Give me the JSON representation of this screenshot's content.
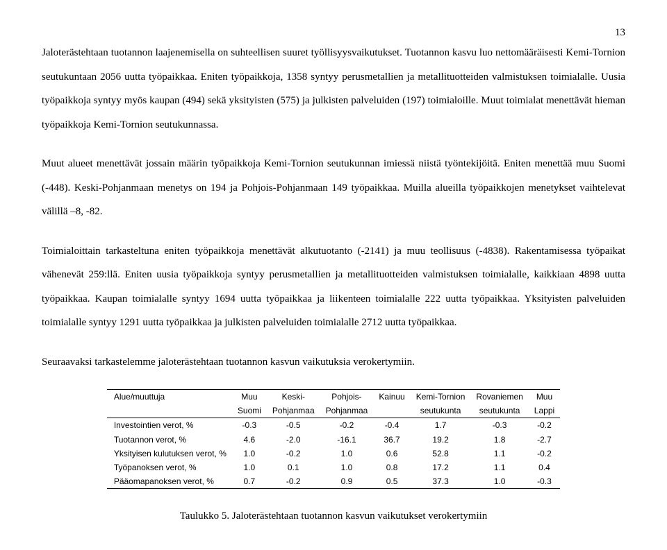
{
  "page_number": "13",
  "paragraphs": {
    "p1": "Jaloterästehtaan tuotannon laajenemisella on suhteellisen suuret työllisyysvaikutukset. Tuotannon kasvu luo nettomääräisesti Kemi-Tornion seutukuntaan 2056 uutta työpaikkaa. Eniten työpaikkoja, 1358 syntyy perusmetallien ja metallituotteiden valmistuksen toimialalle. Uusia työpaikkoja syntyy myös kaupan (494) sekä yksityisten (575) ja julkisten palveluiden (197) toimialoille. Muut toimialat menettävät hieman työpaikkoja Kemi-Tornion seutukunnassa.",
    "p2": "Muut alueet menettävät jossain määrin työpaikkoja Kemi-Tornion seutukunnan imiessä niistä työntekijöitä. Eniten menettää muu Suomi (-448). Keski-Pohjanmaan menetys on 194 ja Pohjois-Pohjanmaan 149 työpaikkaa. Muilla alueilla työpaikkojen menetykset vaihtelevat välillä –8, -82.",
    "p3": "Toimialoittain tarkasteltuna eniten työpaikkoja menettävät alkutuotanto (-2141) ja muu teollisuus (-4838). Rakentamisessa työpaikat vähenevät 259:llä. Eniten uusia työpaikkoja syntyy perusmetallien ja metallituotteiden valmistuksen toimialalle, kaikkiaan 4898 uutta työpaikkaa. Kaupan toimialalle syntyy 1694 uutta työpaikkaa ja liikenteen toimialalle 222 uutta työpaikkaa. Yksityisten palveluiden toimialalle syntyy 1291 uutta työpaikkaa ja julkisten palveluiden toimialalle 2712 uutta työpaikkaa.",
    "p4": "Seuraavaksi tarkastelemme jaloterästehtaan tuotannon kasvun vaikutuksia verokertymiin."
  },
  "table": {
    "header_row1": {
      "c0": "Alue/muuttuja",
      "c1": "Muu",
      "c2": "Keski-",
      "c3": "Pohjois-",
      "c4": "Kainuu",
      "c5": "Kemi-Tornion",
      "c6": "Rovaniemen",
      "c7": "Muu"
    },
    "header_row2": {
      "c0": "",
      "c1": "Suomi",
      "c2": "Pohjanmaa",
      "c3": "Pohjanmaa",
      "c4": "",
      "c5": "seutukunta",
      "c6": "seutukunta",
      "c7": "Lappi"
    },
    "rows": [
      {
        "label": "Investointien verot, %",
        "v": [
          "-0.3",
          "-0.5",
          "-0.2",
          "-0.4",
          "1.7",
          "-0.3",
          "-0.2"
        ]
      },
      {
        "label": "Tuotannon verot, %",
        "v": [
          "4.6",
          "-2.0",
          "-16.1",
          "36.7",
          "19.2",
          "1.8",
          "-2.7"
        ]
      },
      {
        "label": "Yksityisen kulutuksen verot, %",
        "v": [
          "1.0",
          "-0.2",
          "1.0",
          "0.6",
          "52.8",
          "1.1",
          "-0.2"
        ]
      },
      {
        "label": "Työpanoksen verot, %",
        "v": [
          "1.0",
          "0.1",
          "1.0",
          "0.8",
          "17.2",
          "1.1",
          "0.4"
        ]
      },
      {
        "label": "Pääomapanoksen verot, %",
        "v": [
          "0.7",
          "-0.2",
          "0.9",
          "0.5",
          "37.3",
          "1.0",
          "-0.3"
        ]
      }
    ]
  },
  "caption": "Taulukko 5. Jaloterästehtaan tuotannon kasvun vaikutukset verokertymiin"
}
